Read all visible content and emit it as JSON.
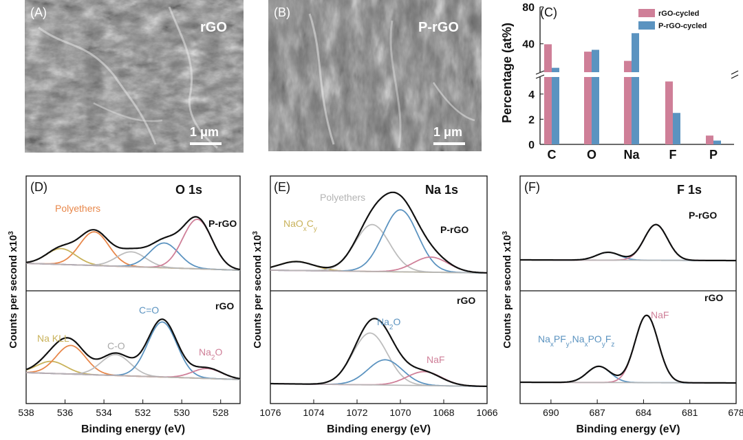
{
  "colors": {
    "rgo_bar": "#cf7f98",
    "prgo_bar": "#5b93c0",
    "fit_envelope": "#111111",
    "polyethers": "#e8874a",
    "naKLL": "#c9b25a",
    "c_o": "#bdbdbd",
    "c_eq_o": "#5b93c0",
    "na2o_pink": "#cf7f98",
    "background_line": "#b5b5b5",
    "sem_bg": "#7b7b7b"
  },
  "sem": {
    "a": {
      "tag": "(A)",
      "sample": "rGO",
      "scale": "1 μm"
    },
    "b": {
      "tag": "(B)",
      "sample": "P-rGO",
      "scale": "1 μm"
    }
  },
  "chart_data": [
    {
      "panel": "(C)",
      "type": "bar",
      "ylabel": "Percentage (at%)",
      "categories": [
        "C",
        "O",
        "Na",
        "F",
        "P"
      ],
      "series": [
        {
          "name": "rGO-cycled",
          "values": [
            39.5,
            31.5,
            21.5,
            5.0,
            0.7
          ]
        },
        {
          "name": "P-rGO-cycled",
          "values": [
            14.0,
            33.5,
            51.5,
            2.5,
            0.3
          ]
        }
      ],
      "ylim_upper": [
        10,
        80
      ],
      "yticks_upper": [
        "80",
        "40"
      ],
      "ylim_lower": [
        0,
        5.3
      ],
      "yticks_lower": [
        "4",
        "2",
        "0"
      ],
      "axis_break": true
    },
    {
      "panel": "(D)",
      "type": "line",
      "title": "O 1s",
      "xlabel": "Binding energy (eV)",
      "ylabel": "Counts per second x10",
      "ylabel_sup": "3",
      "xlim": [
        538,
        527
      ],
      "xticks": [
        "538",
        "536",
        "534",
        "532",
        "530",
        "528"
      ],
      "stacks": [
        {
          "name": "P-rGO",
          "peaks": [
            {
              "label": "Polyethers",
              "color": "#e8874a",
              "center": 534.5,
              "height": 0.68
            },
            {
              "label": "Na KLL",
              "color": "#c9b25a",
              "center": 536.2,
              "height": 0.32
            },
            {
              "label": "C-O",
              "color": "#bdbdbd",
              "center": 532.6,
              "height": 0.3
            },
            {
              "label": "C=O",
              "color": "#5b93c0",
              "center": 530.9,
              "height": 0.5
            },
            {
              "label": "Na2O",
              "color": "#cf7f98",
              "center": 529.2,
              "height": 1.0
            }
          ]
        },
        {
          "name": "rGO",
          "peaks": [
            {
              "label": "Na KLL",
              "color": "#c9b25a",
              "center": 536.7,
              "height": 0.22
            },
            {
              "label": "Polyethers",
              "color": "#e8874a",
              "center": 535.7,
              "height": 0.52
            },
            {
              "label": "C-O",
              "color": "#bdbdbd",
              "center": 533.4,
              "height": 0.38
            },
            {
              "label": "C=O",
              "color": "#5b93c0",
              "center": 531.0,
              "height": 1.0
            },
            {
              "label": "Na2O",
              "color": "#cf7f98",
              "center": 528.7,
              "height": 0.18
            }
          ]
        }
      ]
    },
    {
      "panel": "(E)",
      "type": "line",
      "title": "Na 1s",
      "xlabel": "Binding energy (eV)",
      "ylabel": "Counts per second x10",
      "ylabel_sup": "3",
      "xlim": [
        1076,
        1066
      ],
      "xticks": [
        "1076",
        "1074",
        "1072",
        "1070",
        "1068",
        "1066"
      ],
      "stacks": [
        {
          "name": "P-rGO",
          "peaks": [
            {
              "label": "NaOxCy",
              "color": "#c9b25a",
              "center": 1074.8,
              "height": 0.12
            },
            {
              "label": "Polyethers",
              "color": "#bdbdbd",
              "center": 1071.3,
              "height": 0.62
            },
            {
              "label": "Na2O",
              "color": "#5b93c0",
              "center": 1070.0,
              "height": 0.82
            },
            {
              "label": "NaF",
              "color": "#cf7f98",
              "center": 1068.6,
              "height": 0.2
            }
          ]
        },
        {
          "name": "rGO",
          "peaks": [
            {
              "label": "Polyethers",
              "color": "#bdbdbd",
              "center": 1071.4,
              "height": 0.82
            },
            {
              "label": "Na2O",
              "color": "#5b93c0",
              "center": 1070.7,
              "height": 0.4
            },
            {
              "label": "NaF",
              "color": "#cf7f98",
              "center": 1068.9,
              "height": 0.22
            }
          ]
        }
      ]
    },
    {
      "panel": "(F)",
      "type": "line",
      "title": "F 1s",
      "xlabel": "Binding energy (eV)",
      "ylabel": "Counts per second x10",
      "ylabel_sup": "3",
      "xlim": [
        692,
        678
      ],
      "xticks": [
        "690",
        "687",
        "684",
        "681",
        "678"
      ],
      "stacks": [
        {
          "name": "P-rGO",
          "peaks": [
            {
              "label": "NaxPFy,NaxPOyFz",
              "color": "#5b93c0",
              "center": 686.3,
              "height": 0.22
            },
            {
              "label": "NaF",
              "color": "#cf7f98",
              "center": 683.2,
              "height": 1.0
            }
          ]
        },
        {
          "name": "rGO",
          "peaks": [
            {
              "label": "NaxPFy,NaxPOyFz",
              "color": "#5b93c0",
              "center": 686.9,
              "height": 0.24
            },
            {
              "label": "NaF",
              "color": "#cf7f98",
              "center": 683.8,
              "height": 1.0
            }
          ]
        }
      ]
    }
  ],
  "labels": {
    "d": {
      "tag": "(D)",
      "top": "P-rGO",
      "bottom": "rGO",
      "polyethers": "Polyethers",
      "na_kll": "Na KLL",
      "c_o": "C-O",
      "c_eq_o": "C=O",
      "na2o_main": "Na",
      "na2o_sub": "2",
      "na2o_end": "O"
    },
    "e": {
      "tag": "(E)",
      "top": "P-rGO",
      "bottom": "rGO",
      "polyethers": "Polyethers",
      "naoc_a": "NaO",
      "naoc_x": "x",
      "naoc_c": "C",
      "naoc_y": "y",
      "na2o_main": "Na",
      "na2o_sub": "2",
      "na2o_end": "O",
      "naf": "NaF"
    },
    "f": {
      "tag": "(F)",
      "top": "P-rGO",
      "bottom": "rGO",
      "naf": "NaF",
      "sp1": "Na",
      "sp2": "x",
      "sp3": "PF",
      "sp4": "y",
      "sp5": ",Na",
      "sp6": "x",
      "sp7": "PO",
      "sp8": "y",
      "sp9": "F",
      "sp10": "z"
    }
  }
}
